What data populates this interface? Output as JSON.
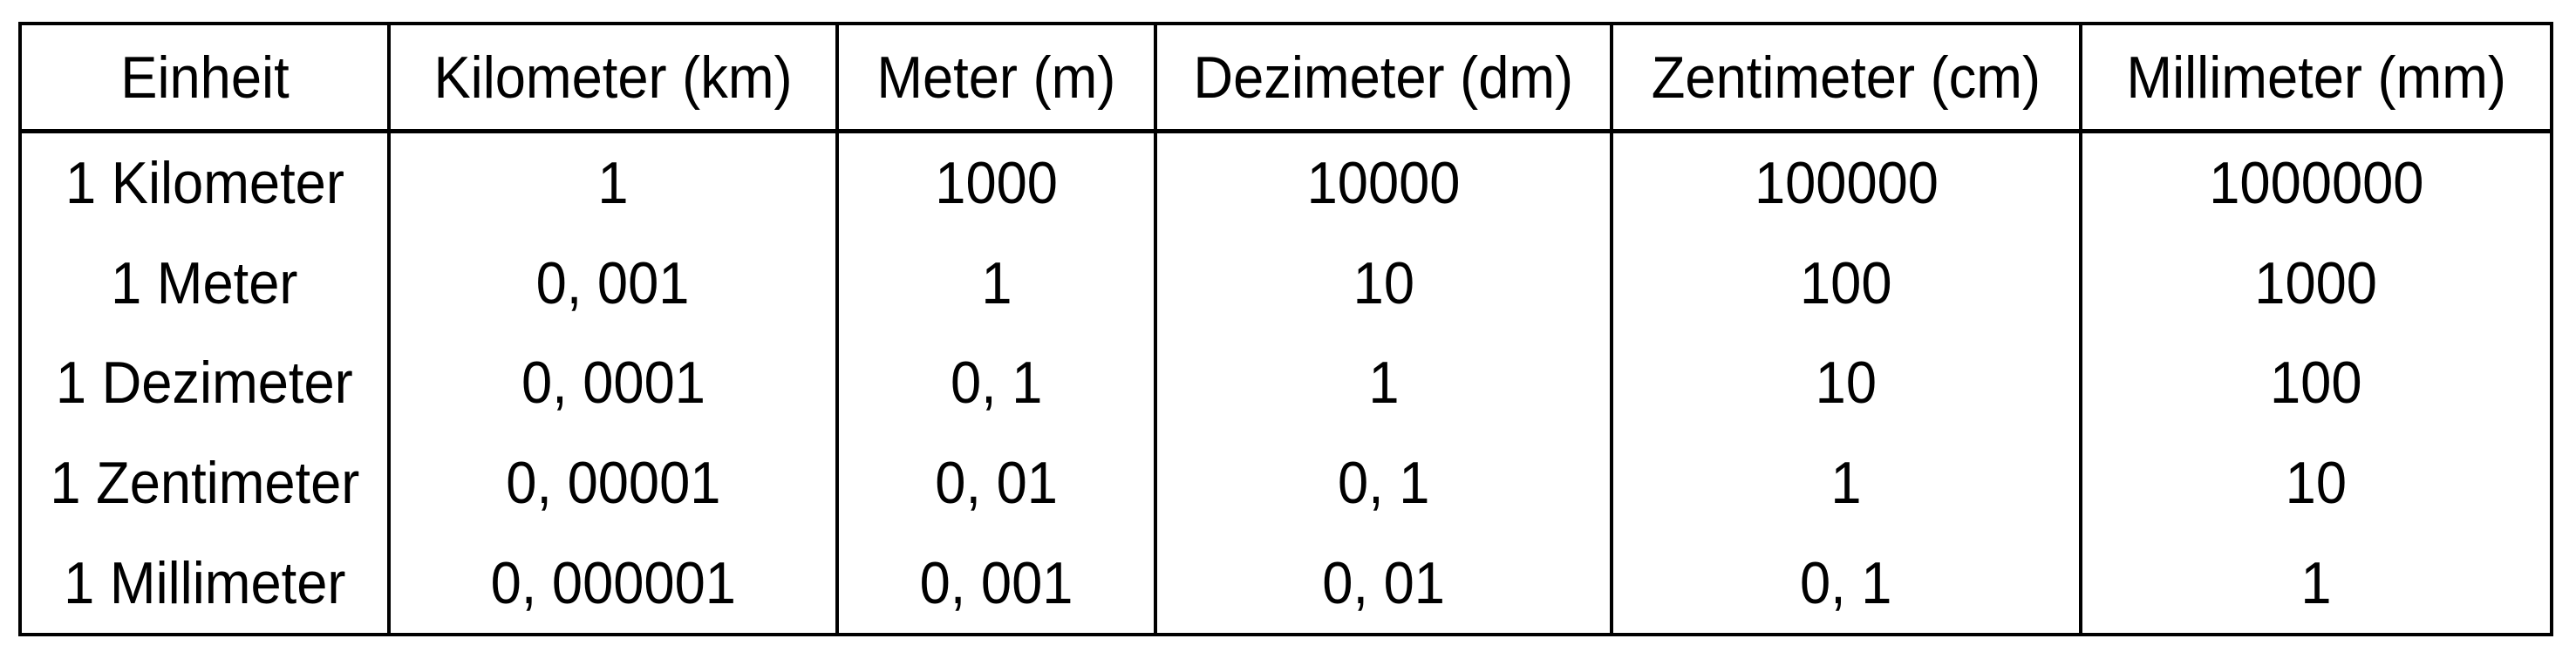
{
  "colors": {
    "background": "#ffffff",
    "grid_border": "#000000",
    "text": "#000000"
  },
  "chart_data": {
    "type": "table",
    "columns": [
      "Einheit",
      "Kilometer (km)",
      "Meter (m)",
      "Dezimeter (dm)",
      "Zentimeter (cm)",
      "Millimeter (mm)"
    ],
    "rows": [
      [
        "1 Kilometer",
        "1",
        "1000",
        "10000",
        "100000",
        "1000000"
      ],
      [
        "1 Meter",
        "0, 001",
        "1",
        "10",
        "100",
        "1000"
      ],
      [
        "1 Dezimeter",
        "0, 0001",
        "0, 1",
        "1",
        "10",
        "100"
      ],
      [
        "1 Zentimeter",
        "0, 00001",
        "0, 01",
        "0, 1",
        "1",
        "10"
      ],
      [
        "1 Millimeter",
        "0, 000001",
        "0, 001",
        "0, 01",
        "0, 1",
        "1"
      ]
    ]
  }
}
